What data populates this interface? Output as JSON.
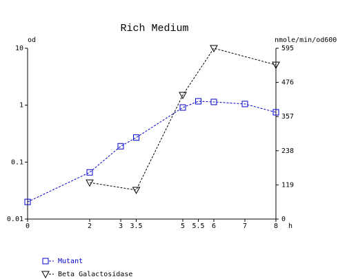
{
  "chart_data": {
    "type": "line",
    "title": "Rich Medium",
    "y_label": "od",
    "y2_label": "nmole/min/od600",
    "x_label": "h",
    "xlim": [
      0,
      8
    ],
    "xticks": [
      0,
      2,
      3,
      3.5,
      5,
      5.5,
      6,
      7,
      8
    ],
    "ylim": [
      0.01,
      10
    ],
    "yticks": [
      0.01,
      0.1,
      1,
      10
    ],
    "y_scale": "log",
    "y2lim": [
      0,
      595
    ],
    "y2ticks": [
      0,
      119,
      238,
      357,
      476,
      595
    ],
    "series": [
      {
        "name": "Mutant",
        "color": "#0000cc",
        "marker": "square",
        "axis": "y",
        "x": [
          0,
          2,
          3,
          3.5,
          5,
          5.5,
          6,
          7,
          8
        ],
        "values": [
          0.02,
          0.066,
          0.19,
          0.27,
          0.91,
          1.17,
          1.14,
          1.05,
          0.75
        ]
      },
      {
        "name": "Beta Galactosidase",
        "color": "#000000",
        "marker": "triangle-down",
        "axis": "y2",
        "x": [
          2,
          3.5,
          5,
          6,
          8
        ],
        "values": [
          127,
          101,
          432,
          595,
          537
        ]
      }
    ]
  }
}
